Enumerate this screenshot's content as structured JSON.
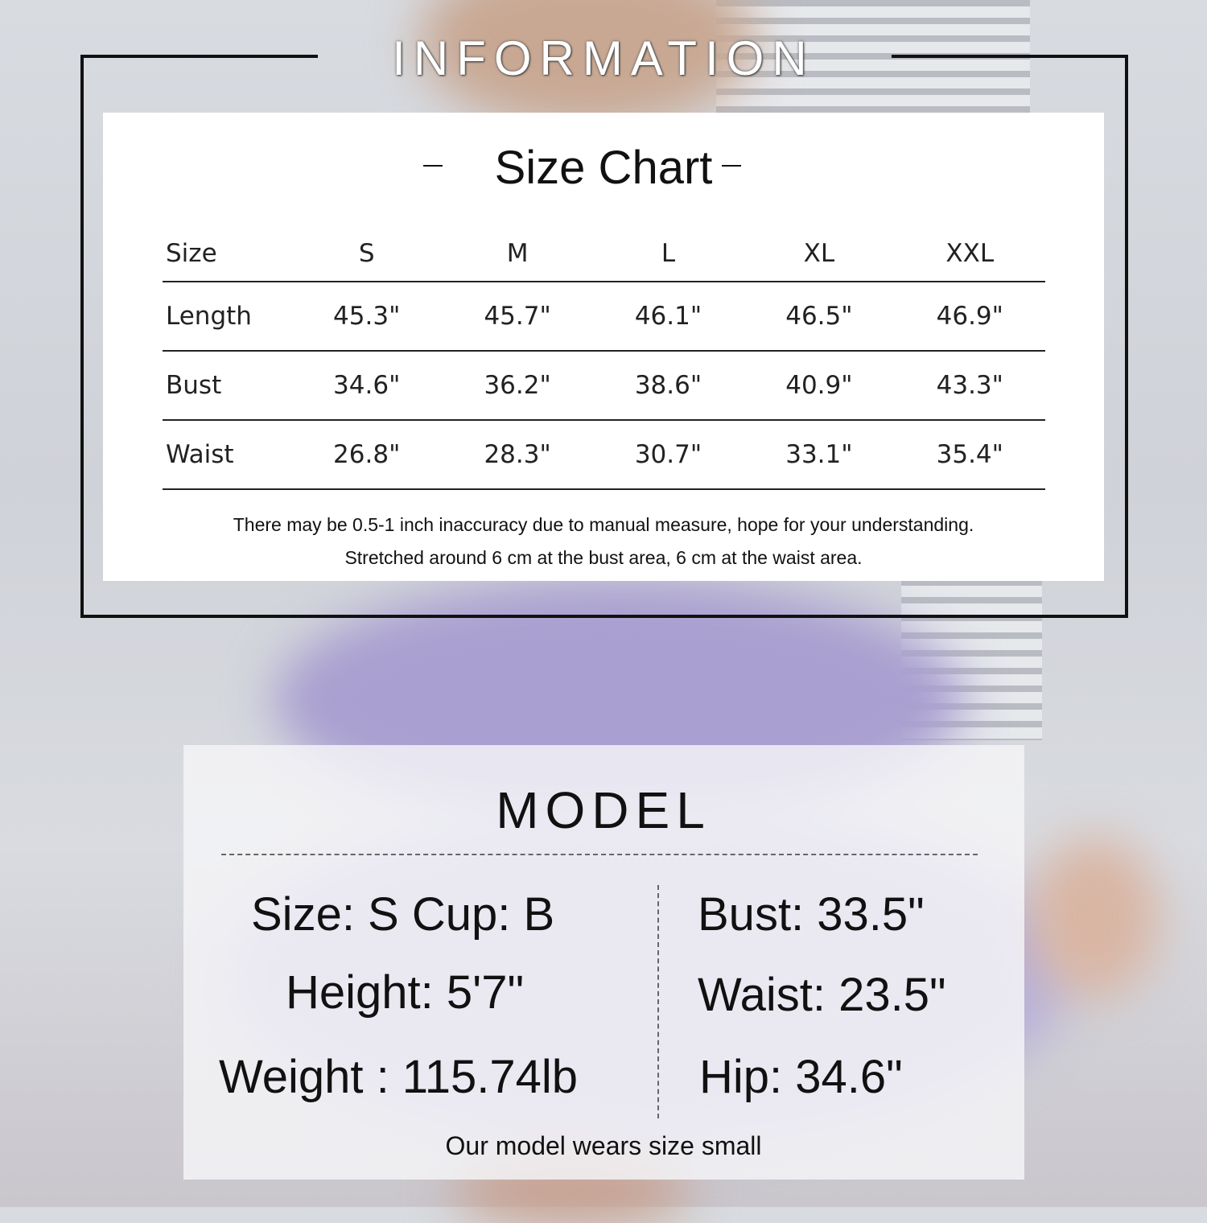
{
  "header": {
    "title": "INFORMATION"
  },
  "size_chart": {
    "title": "Size Chart",
    "columns": [
      "Size",
      "S",
      "M",
      "L",
      "XL",
      "XXL"
    ],
    "rows": [
      [
        "Length",
        "45.3\"",
        "45.7\"",
        "46.1\"",
        "46.5\"",
        "46.9\""
      ],
      [
        "Bust",
        "34.6\"",
        "36.2\"",
        "38.6\"",
        "40.9\"",
        "43.3\""
      ],
      [
        "Waist",
        "26.8\"",
        "28.3\"",
        "30.7\"",
        "33.1\"",
        "35.4\""
      ]
    ],
    "notes": [
      "There may be 0.5-1 inch inaccuracy due to manual measure, hope for your understanding.",
      "Stretched around 6 cm at the bust area, 6 cm at the waist area."
    ]
  },
  "model": {
    "title": "MODEL",
    "left": [
      "Size: S Cup: B",
      "Height: 5'7\"",
      "Weight : 115.74lb"
    ],
    "right": [
      "Bust: 33.5\"",
      "Waist: 23.5\"",
      "Hip: 34.6\""
    ],
    "footer": "Our model wears size small"
  }
}
